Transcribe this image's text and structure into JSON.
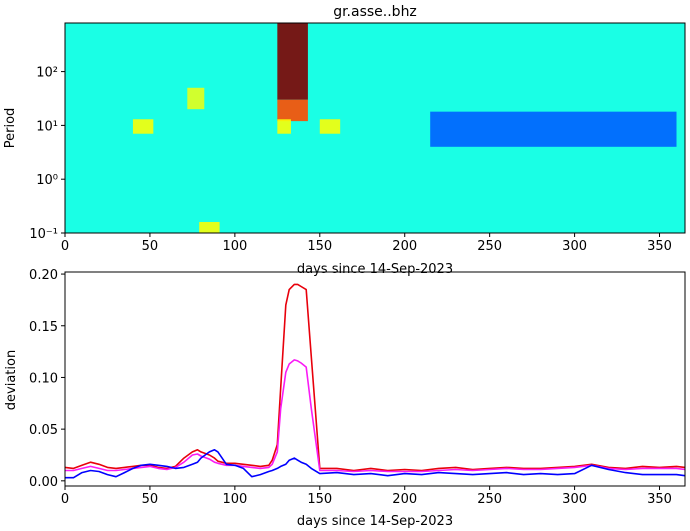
{
  "chart_data": [
    {
      "type": "heatmap",
      "title": "gr.asse..bhz",
      "xlabel": "days since 14-Sep-2023",
      "ylabel": "Period",
      "xlim": [
        0,
        365
      ],
      "ylim": [
        0.1,
        800
      ],
      "yscale": "log",
      "xticks": [
        0,
        50,
        100,
        150,
        200,
        250,
        300,
        350
      ],
      "xtick_labels": [
        "0",
        "50",
        "100",
        "150",
        "200",
        "250",
        "300",
        "350"
      ],
      "yticks": [
        0.1,
        1,
        10,
        100
      ],
      "ytick_labels": [
        "10⁻¹",
        "10⁰",
        "10¹",
        "10²"
      ],
      "colormap": "jet",
      "background_level": 0.4,
      "features": [
        {
          "x": [
            125,
            143
          ],
          "period": [
            30,
            800
          ],
          "level": 1.0,
          "note": "dark red block"
        },
        {
          "x": [
            125,
            143
          ],
          "period": [
            12,
            30
          ],
          "level": 0.8
        },
        {
          "x": [
            215,
            360
          ],
          "period": [
            4,
            18
          ],
          "level": 0.22,
          "note": "blue band"
        },
        {
          "x": [
            40,
            52
          ],
          "period": [
            7,
            13
          ],
          "level": 0.62
        },
        {
          "x": [
            72,
            82
          ],
          "period": [
            20,
            50
          ],
          "level": 0.6
        },
        {
          "x": [
            79,
            91
          ],
          "period": [
            0.1,
            0.16
          ],
          "level": 0.62
        },
        {
          "x": [
            125,
            133
          ],
          "period": [
            7,
            13
          ],
          "level": 0.62
        },
        {
          "x": [
            150,
            162
          ],
          "period": [
            7,
            13
          ],
          "level": 0.62
        }
      ]
    },
    {
      "type": "line",
      "title": "",
      "xlabel": "days since 14-Sep-2023",
      "ylabel": "deviation",
      "xlim": [
        0,
        365
      ],
      "ylim": [
        -0.005,
        0.202
      ],
      "xticks": [
        0,
        50,
        100,
        150,
        200,
        250,
        300,
        350
      ],
      "xtick_labels": [
        "0",
        "50",
        "100",
        "150",
        "200",
        "250",
        "300",
        "350"
      ],
      "yticks": [
        0.0,
        0.05,
        0.1,
        0.15,
        0.2
      ],
      "ytick_labels": [
        "0.00",
        "0.05",
        "0.10",
        "0.15",
        "0.20"
      ],
      "x": [
        0,
        5,
        10,
        15,
        20,
        25,
        30,
        35,
        40,
        45,
        50,
        55,
        60,
        65,
        70,
        75,
        78,
        80,
        85,
        88,
        90,
        95,
        100,
        105,
        110,
        115,
        120,
        122,
        125,
        127,
        130,
        132,
        135,
        137,
        139,
        142,
        145,
        150,
        160,
        170,
        180,
        190,
        200,
        210,
        220,
        230,
        240,
        250,
        260,
        270,
        280,
        290,
        300,
        310,
        320,
        330,
        340,
        350,
        360,
        365
      ],
      "series": [
        {
          "color": "#e8000b",
          "values": [
            0.013,
            0.012,
            0.015,
            0.018,
            0.016,
            0.013,
            0.012,
            0.013,
            0.014,
            0.015,
            0.015,
            0.013,
            0.012,
            0.014,
            0.022,
            0.028,
            0.03,
            0.028,
            0.025,
            0.022,
            0.019,
            0.017,
            0.017,
            0.016,
            0.015,
            0.014,
            0.015,
            0.02,
            0.035,
            0.09,
            0.17,
            0.185,
            0.19,
            0.19,
            0.188,
            0.185,
            0.12,
            0.012,
            0.012,
            0.01,
            0.012,
            0.01,
            0.011,
            0.01,
            0.012,
            0.013,
            0.011,
            0.012,
            0.013,
            0.012,
            0.012,
            0.013,
            0.014,
            0.016,
            0.013,
            0.012,
            0.014,
            0.013,
            0.014,
            0.013
          ]
        },
        {
          "color": "#f91bf5",
          "values": [
            0.01,
            0.01,
            0.012,
            0.014,
            0.012,
            0.01,
            0.01,
            0.011,
            0.012,
            0.013,
            0.014,
            0.012,
            0.011,
            0.013,
            0.018,
            0.025,
            0.026,
            0.024,
            0.021,
            0.018,
            0.017,
            0.015,
            0.015,
            0.014,
            0.013,
            0.012,
            0.013,
            0.016,
            0.028,
            0.07,
            0.105,
            0.113,
            0.117,
            0.116,
            0.114,
            0.11,
            0.07,
            0.01,
            0.01,
            0.009,
            0.01,
            0.009,
            0.009,
            0.009,
            0.01,
            0.011,
            0.01,
            0.011,
            0.012,
            0.011,
            0.011,
            0.012,
            0.013,
            0.015,
            0.012,
            0.011,
            0.012,
            0.012,
            0.012,
            0.011
          ]
        },
        {
          "color": "#0000ff",
          "values": [
            0.003,
            0.003,
            0.008,
            0.01,
            0.009,
            0.006,
            0.004,
            0.008,
            0.012,
            0.015,
            0.016,
            0.015,
            0.014,
            0.012,
            0.013,
            0.016,
            0.018,
            0.022,
            0.028,
            0.03,
            0.028,
            0.016,
            0.015,
            0.012,
            0.004,
            0.006,
            0.009,
            0.01,
            0.012,
            0.014,
            0.016,
            0.02,
            0.022,
            0.02,
            0.018,
            0.016,
            0.012,
            0.007,
            0.008,
            0.006,
            0.007,
            0.005,
            0.007,
            0.006,
            0.008,
            0.007,
            0.006,
            0.007,
            0.008,
            0.006,
            0.007,
            0.006,
            0.007,
            0.015,
            0.011,
            0.008,
            0.006,
            0.006,
            0.006,
            0.005
          ]
        }
      ]
    }
  ]
}
